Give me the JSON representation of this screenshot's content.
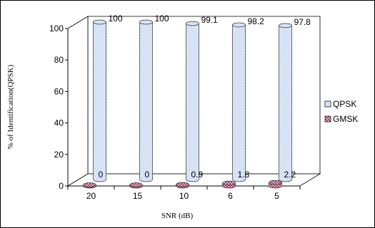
{
  "chart_data": {
    "type": "bar",
    "categories": [
      "20",
      "15",
      "10",
      "6",
      "5"
    ],
    "series": [
      {
        "name": "QPSK",
        "values": [
          100,
          100,
          99.1,
          98.2,
          97.8
        ],
        "labels": [
          "100",
          "100",
          "99.1",
          "98.2",
          "97.8"
        ],
        "color": "#c6d9f1"
      },
      {
        "name": "GMSK",
        "values": [
          0,
          0,
          0.9,
          1.8,
          2.2
        ],
        "labels": [
          "0",
          "0",
          "0.9",
          "1.8",
          "2.2"
        ],
        "color": "#e6b8cc"
      }
    ],
    "xlabel": "SNR (dB)",
    "ylabel": "% of Identification(QPSK)",
    "ylim": [
      0,
      100
    ],
    "yticks": [
      0,
      20,
      40,
      60,
      80,
      100
    ],
    "grid": false,
    "legend_position": "right",
    "style": "3d-cylinder"
  }
}
